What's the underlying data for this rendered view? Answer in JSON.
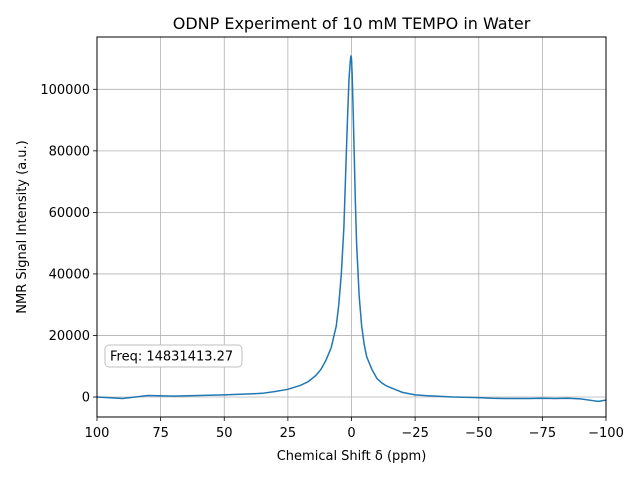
{
  "chart_data": {
    "type": "line",
    "title": "ODNP Experiment of 10 mM TEMPO in Water",
    "xlabel": "Chemical Shift δ (ppm)",
    "ylabel": "NMR Signal Intensity (a.u.)",
    "xlim": [
      100,
      -100
    ],
    "ylim": [
      -6500,
      117000
    ],
    "x_ticks": [
      100,
      75,
      50,
      25,
      0,
      -25,
      -50,
      -75,
      -100
    ],
    "x_tick_labels": [
      "100",
      "75",
      "50",
      "25",
      "0",
      "−25",
      "−50",
      "−75",
      "−100"
    ],
    "y_ticks": [
      0,
      20000,
      40000,
      60000,
      80000,
      100000
    ],
    "y_tick_labels": [
      "0",
      "20000",
      "40000",
      "60000",
      "80000",
      "100000"
    ],
    "grid": true,
    "annotation": "Freq: 14831413.27",
    "series": [
      {
        "color": "#1f77b4",
        "x": [
          100,
          90,
          80,
          70,
          60,
          50,
          40,
          35,
          30,
          25,
          20,
          17,
          14,
          12,
          10,
          8,
          6,
          5,
          4,
          3,
          2,
          1.5,
          1,
          0.5,
          0.2,
          0,
          -0.3,
          -0.8,
          -1.5,
          -2,
          -3,
          -4,
          -5,
          -6,
          -8,
          -10,
          -12,
          -14,
          -17,
          -20,
          -25,
          -30,
          -40,
          -50,
          -55,
          -60,
          -65,
          -70,
          -75,
          -80,
          -85,
          -90,
          -95,
          -97,
          -100
        ],
        "y": [
          0,
          -500,
          500,
          300,
          500,
          700,
          1000,
          1200,
          1800,
          2500,
          3800,
          5000,
          7000,
          9000,
          12000,
          16000,
          23000,
          30000,
          40000,
          55000,
          80000,
          92000,
          103000,
          109000,
          111000,
          110000,
          104000,
          88000,
          64000,
          50000,
          33000,
          23000,
          17000,
          13000,
          9000,
          6000,
          4500,
          3500,
          2500,
          1500,
          700,
          400,
          0,
          -200,
          -400,
          -500,
          -500,
          -500,
          -400,
          -500,
          -400,
          -600,
          -1200,
          -1400,
          -1000
        ]
      }
    ]
  }
}
